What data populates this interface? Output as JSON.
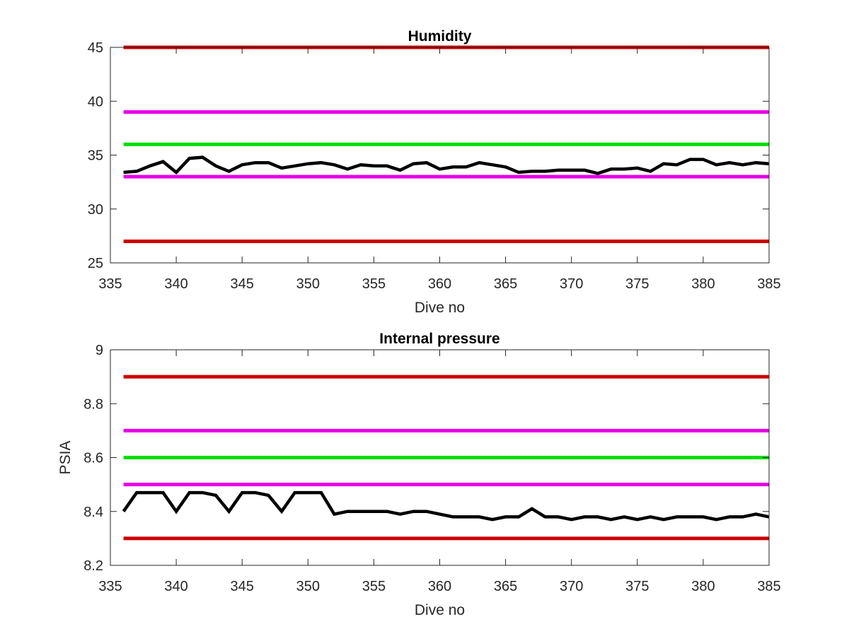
{
  "chart_data": [
    {
      "type": "line",
      "title": "Humidity",
      "xlabel": "Dive no",
      "ylabel": "",
      "xlim": [
        335,
        385
      ],
      "ylim": [
        25,
        45
      ],
      "xticks": [
        "335",
        "340",
        "345",
        "350",
        "355",
        "360",
        "365",
        "370",
        "375",
        "380",
        "385"
      ],
      "yticks": [
        "25",
        "30",
        "35",
        "40",
        "45"
      ],
      "grid": false,
      "thresholds": [
        {
          "value": 45,
          "color": "#cc0000"
        },
        {
          "value": 39,
          "color": "#e600e6"
        },
        {
          "value": 36,
          "color": "#00dd00"
        },
        {
          "value": 33,
          "color": "#e600e6"
        },
        {
          "value": 27,
          "color": "#cc0000"
        }
      ],
      "series": [
        {
          "color": "#000000",
          "x": [
            336,
            337,
            338,
            339,
            340,
            341,
            342,
            343,
            344,
            345,
            346,
            347,
            348,
            349,
            350,
            351,
            352,
            353,
            354,
            355,
            356,
            357,
            358,
            359,
            360,
            361,
            362,
            363,
            364,
            365,
            366,
            367,
            368,
            369,
            370,
            371,
            372,
            373,
            374,
            375,
            376,
            377,
            378,
            379,
            380,
            381,
            382,
            383,
            384,
            385
          ],
          "y": [
            33.4,
            33.5,
            34.0,
            34.4,
            33.4,
            34.7,
            34.8,
            34.0,
            33.5,
            34.1,
            34.3,
            34.3,
            33.8,
            34.0,
            34.2,
            34.3,
            34.1,
            33.7,
            34.1,
            34.0,
            34.0,
            33.6,
            34.2,
            34.3,
            33.7,
            33.9,
            33.9,
            34.3,
            34.1,
            33.9,
            33.4,
            33.5,
            33.5,
            33.6,
            33.6,
            33.6,
            33.3,
            33.7,
            33.7,
            33.8,
            33.5,
            34.2,
            34.1,
            34.6,
            34.6,
            34.1,
            34.3,
            34.1,
            34.3,
            34.2
          ]
        }
      ]
    },
    {
      "type": "line",
      "title": "Internal pressure",
      "xlabel": "Dive no",
      "ylabel": "PSIA",
      "xlim": [
        335,
        385
      ],
      "ylim": [
        8.2,
        9.0
      ],
      "xticks": [
        "335",
        "340",
        "345",
        "350",
        "355",
        "360",
        "365",
        "370",
        "375",
        "380",
        "385"
      ],
      "yticks": [
        "8.2",
        "8.4",
        "8.6",
        "8.8",
        "9"
      ],
      "grid": false,
      "thresholds": [
        {
          "value": 8.9,
          "color": "#cc0000"
        },
        {
          "value": 8.7,
          "color": "#e600e6"
        },
        {
          "value": 8.6,
          "color": "#00dd00"
        },
        {
          "value": 8.5,
          "color": "#e600e6"
        },
        {
          "value": 8.3,
          "color": "#cc0000"
        }
      ],
      "series": [
        {
          "color": "#000000",
          "x": [
            336,
            337,
            338,
            339,
            340,
            341,
            342,
            343,
            344,
            345,
            346,
            347,
            348,
            349,
            350,
            351,
            352,
            353,
            354,
            355,
            356,
            357,
            358,
            359,
            360,
            361,
            362,
            363,
            364,
            365,
            366,
            367,
            368,
            369,
            370,
            371,
            372,
            373,
            374,
            375,
            376,
            377,
            378,
            379,
            380,
            381,
            382,
            383,
            384,
            385
          ],
          "y": [
            8.4,
            8.47,
            8.47,
            8.47,
            8.4,
            8.47,
            8.47,
            8.46,
            8.4,
            8.47,
            8.47,
            8.46,
            8.4,
            8.47,
            8.47,
            8.47,
            8.39,
            8.4,
            8.4,
            8.4,
            8.4,
            8.39,
            8.4,
            8.4,
            8.39,
            8.38,
            8.38,
            8.38,
            8.37,
            8.38,
            8.38,
            8.41,
            8.38,
            8.38,
            8.37,
            8.38,
            8.38,
            8.37,
            8.38,
            8.37,
            8.38,
            8.37,
            8.38,
            8.38,
            8.38,
            8.37,
            8.38,
            8.38,
            8.39,
            8.38
          ]
        }
      ]
    }
  ]
}
